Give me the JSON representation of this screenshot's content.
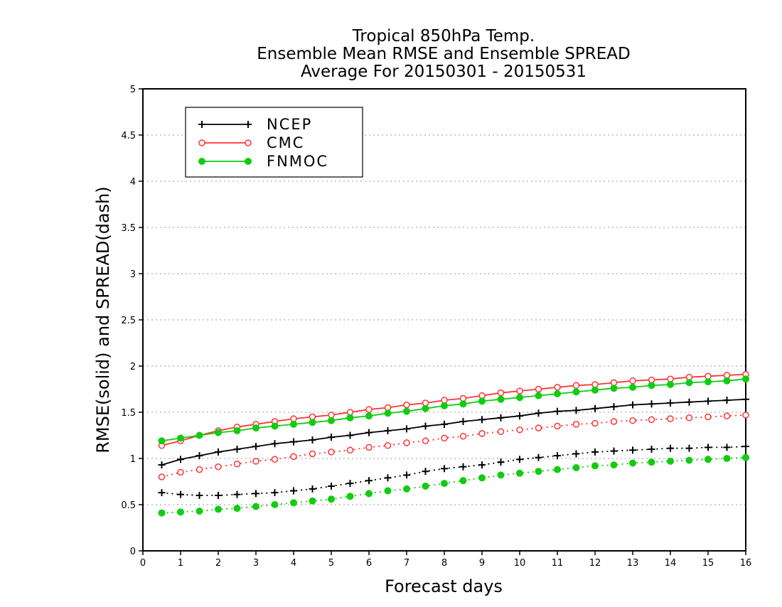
{
  "chart_data": {
    "type": "line",
    "title_lines": [
      "Tropical 850hPa Temp.",
      "Ensemble Mean RMSE and Ensemble SPREAD",
      "Average For 20150301 - 20150531"
    ],
    "xlabel": "Forecast days",
    "ylabel": "RMSE(solid) and SPREAD(dash)",
    "xlim": [
      0,
      16
    ],
    "ylim": [
      0,
      5
    ],
    "x_ticks": [
      "0",
      "1",
      "2",
      "3",
      "4",
      "5",
      "6",
      "7",
      "8",
      "9",
      "10",
      "11",
      "12",
      "13",
      "14",
      "15",
      "16"
    ],
    "y_ticks": [
      "0",
      "0.5",
      "1",
      "1.5",
      "2",
      "2.5",
      "3",
      "3.5",
      "4",
      "4.5",
      "5"
    ],
    "grid": "horizontal dotted",
    "legend_position": "top-left",
    "x": [
      0.5,
      1,
      1.5,
      2,
      2.5,
      3,
      3.5,
      4,
      4.5,
      5,
      5.5,
      6,
      6.5,
      7,
      7.5,
      8,
      8.5,
      9,
      9.5,
      10,
      10.5,
      11,
      11.5,
      12,
      12.5,
      13,
      13.5,
      14,
      14.5,
      15,
      15.5,
      16
    ],
    "series": [
      {
        "name": "NCEP",
        "color": "#000000",
        "marker": "plus",
        "rmse": [
          0.93,
          0.99,
          1.03,
          1.07,
          1.1,
          1.13,
          1.16,
          1.18,
          1.2,
          1.23,
          1.25,
          1.28,
          1.3,
          1.32,
          1.35,
          1.37,
          1.4,
          1.42,
          1.44,
          1.46,
          1.49,
          1.51,
          1.52,
          1.54,
          1.56,
          1.58,
          1.59,
          1.6,
          1.61,
          1.62,
          1.63,
          1.64
        ],
        "spread": [
          0.63,
          0.61,
          0.6,
          0.6,
          0.61,
          0.62,
          0.63,
          0.65,
          0.67,
          0.7,
          0.73,
          0.76,
          0.79,
          0.82,
          0.86,
          0.89,
          0.91,
          0.93,
          0.96,
          0.99,
          1.01,
          1.03,
          1.05,
          1.07,
          1.08,
          1.09,
          1.1,
          1.11,
          1.11,
          1.12,
          1.12,
          1.13
        ]
      },
      {
        "name": "CMC",
        "color": "#ff3333",
        "marker": "open-circle",
        "rmse": [
          1.14,
          1.19,
          1.25,
          1.3,
          1.34,
          1.37,
          1.4,
          1.43,
          1.45,
          1.47,
          1.5,
          1.53,
          1.55,
          1.58,
          1.6,
          1.63,
          1.65,
          1.68,
          1.71,
          1.73,
          1.75,
          1.77,
          1.79,
          1.8,
          1.82,
          1.84,
          1.85,
          1.86,
          1.88,
          1.89,
          1.9,
          1.91
        ],
        "spread": [
          0.8,
          0.85,
          0.88,
          0.91,
          0.94,
          0.97,
          0.99,
          1.02,
          1.05,
          1.07,
          1.09,
          1.12,
          1.14,
          1.17,
          1.19,
          1.22,
          1.24,
          1.27,
          1.29,
          1.31,
          1.33,
          1.35,
          1.37,
          1.38,
          1.4,
          1.41,
          1.42,
          1.43,
          1.44,
          1.45,
          1.46,
          1.47
        ]
      },
      {
        "name": "FNMOC",
        "color": "#11cc11",
        "marker": "filled-circle",
        "rmse": [
          1.19,
          1.22,
          1.25,
          1.28,
          1.3,
          1.33,
          1.35,
          1.37,
          1.39,
          1.41,
          1.44,
          1.46,
          1.49,
          1.51,
          1.54,
          1.57,
          1.59,
          1.62,
          1.64,
          1.66,
          1.68,
          1.7,
          1.72,
          1.74,
          1.76,
          1.77,
          1.79,
          1.8,
          1.82,
          1.83,
          1.84,
          1.86
        ],
        "spread": [
          0.41,
          0.42,
          0.43,
          0.45,
          0.46,
          0.48,
          0.5,
          0.52,
          0.54,
          0.56,
          0.59,
          0.62,
          0.65,
          0.67,
          0.7,
          0.73,
          0.76,
          0.79,
          0.82,
          0.84,
          0.86,
          0.88,
          0.9,
          0.92,
          0.93,
          0.95,
          0.96,
          0.97,
          0.98,
          0.99,
          1.0,
          1.01
        ]
      }
    ]
  }
}
